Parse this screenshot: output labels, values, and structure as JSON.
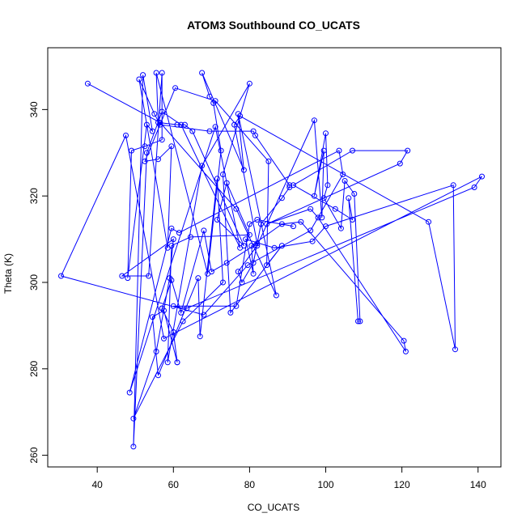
{
  "chart_data": {
    "type": "line",
    "title": "ATOM3 Southbound CO_UCATS",
    "xlabel": "CO_UCATS",
    "ylabel": "Theta (K)",
    "xlim": [
      27,
      146
    ],
    "ylim": [
      257.3,
      354.3
    ],
    "x_ticks": [
      40,
      60,
      80,
      100,
      120,
      140
    ],
    "y_ticks": [
      260,
      280,
      300,
      320,
      340
    ],
    "grid": false,
    "legend": "none",
    "marker": "open-circle",
    "color": "#0000ff",
    "points": [
      [
        37.5,
        346.0
      ],
      [
        56.5,
        337.0
      ],
      [
        76.5,
        317.0
      ],
      [
        87.0,
        297.0
      ],
      [
        77.0,
        339.0
      ],
      [
        78.5,
        326.0
      ],
      [
        67.5,
        348.5
      ],
      [
        69.5,
        343.0
      ],
      [
        70.5,
        341.5
      ],
      [
        72.5,
        330.5
      ],
      [
        69.0,
        302.0
      ],
      [
        55.5,
        348.5
      ],
      [
        56.0,
        337.0
      ],
      [
        61.0,
        336.5
      ],
      [
        63.0,
        336.5
      ],
      [
        65.0,
        335.0
      ],
      [
        78.5,
        308.5
      ],
      [
        71.5,
        314.5
      ],
      [
        74.0,
        323.0
      ],
      [
        80.0,
        311.0
      ],
      [
        64.5,
        310.5
      ],
      [
        59.5,
        308.5
      ],
      [
        58.5,
        281.5
      ],
      [
        67.5,
        327.0
      ],
      [
        80.0,
        346.0
      ],
      [
        73.0,
        325.0
      ],
      [
        75.0,
        293.0
      ],
      [
        88.5,
        308.5
      ],
      [
        84.5,
        304.0
      ],
      [
        85.0,
        328.0
      ],
      [
        71.0,
        342.0
      ],
      [
        60.5,
        345.0
      ],
      [
        52.5,
        328.0
      ],
      [
        56.0,
        328.5
      ],
      [
        59.5,
        331.5
      ],
      [
        58.5,
        308.0
      ],
      [
        51.0,
        347.0
      ],
      [
        55.0,
        339.0
      ],
      [
        56.5,
        336.5
      ],
      [
        69.5,
        335.0
      ],
      [
        81.0,
        335.0
      ],
      [
        81.5,
        334.0
      ],
      [
        90.5,
        322.5
      ],
      [
        90.5,
        322.0
      ],
      [
        88.5,
        319.5
      ],
      [
        83.0,
        313.5
      ],
      [
        81.0,
        304.5
      ],
      [
        78.0,
        300.0
      ],
      [
        77.0,
        302.5
      ],
      [
        82.0,
        308.5
      ],
      [
        97.0,
        337.5
      ],
      [
        99.0,
        315.0
      ],
      [
        99.5,
        330.5
      ],
      [
        97.0,
        320.0
      ],
      [
        100.0,
        334.5
      ],
      [
        100.5,
        322.5
      ],
      [
        99.5,
        319.5
      ],
      [
        104.0,
        312.5
      ],
      [
        105.0,
        323.5
      ],
      [
        107.5,
        320.5
      ],
      [
        109.0,
        291.0
      ],
      [
        108.5,
        291.0
      ],
      [
        106.0,
        319.5
      ],
      [
        107.0,
        314.5
      ],
      [
        102.5,
        317.0
      ],
      [
        91.5,
        322.5
      ],
      [
        107.0,
        330.5
      ],
      [
        121.5,
        330.5
      ],
      [
        119.5,
        327.5
      ],
      [
        84.5,
        313.5
      ],
      [
        96.0,
        317.0
      ],
      [
        98.0,
        315.0
      ],
      [
        121.0,
        284.0
      ],
      [
        120.5,
        286.5
      ],
      [
        93.5,
        314.0
      ],
      [
        88.5,
        313.5
      ],
      [
        80.5,
        308.5
      ],
      [
        81.0,
        302.0
      ],
      [
        79.0,
        310.0
      ],
      [
        86.5,
        308.0
      ],
      [
        96.5,
        309.5
      ],
      [
        100.0,
        313.0
      ],
      [
        133.5,
        322.5
      ],
      [
        134.0,
        284.5
      ],
      [
        127.0,
        314.0
      ],
      [
        77.5,
        338.5
      ],
      [
        76.0,
        336.5
      ],
      [
        82.0,
        309.0
      ],
      [
        74.0,
        304.5
      ],
      [
        70.0,
        302.5
      ],
      [
        68.0,
        312.0
      ],
      [
        62.0,
        293.0
      ],
      [
        59.5,
        300.5
      ],
      [
        57.0,
        294.0
      ],
      [
        57.0,
        294.0
      ],
      [
        60.0,
        288.5
      ],
      [
        61.0,
        281.5
      ],
      [
        61.0,
        281.5
      ],
      [
        57.5,
        293.5
      ],
      [
        54.5,
        292.0
      ],
      [
        56.0,
        278.5
      ],
      [
        66.5,
        301.0
      ],
      [
        67.0,
        287.5
      ],
      [
        71.5,
        324.0
      ],
      [
        73.0,
        300.0
      ],
      [
        62.5,
        291.0
      ],
      [
        49.5,
        268.5
      ],
      [
        55.5,
        284.0
      ],
      [
        59.0,
        301.0
      ],
      [
        60.0,
        310.0
      ],
      [
        46.5,
        301.5
      ],
      [
        53.5,
        301.5
      ],
      [
        57.0,
        348.5
      ],
      [
        57.0,
        333.0
      ],
      [
        52.5,
        331.5
      ],
      [
        49.0,
        330.5
      ],
      [
        48.0,
        301.0
      ],
      [
        53.0,
        336.5
      ],
      [
        54.5,
        335.0
      ],
      [
        52.0,
        348.0
      ],
      [
        49.5,
        262.0
      ],
      [
        53.0,
        330.0
      ],
      [
        57.0,
        339.5
      ],
      [
        62.0,
        336.5
      ],
      [
        77.5,
        308.0
      ],
      [
        71.0,
        336.0
      ],
      [
        48.5,
        274.5
      ],
      [
        59.5,
        312.5
      ],
      [
        61.5,
        311.5
      ],
      [
        103.5,
        330.5
      ],
      [
        104.5,
        325.0
      ],
      [
        96.0,
        312.0
      ],
      [
        79.5,
        304.0
      ],
      [
        68.0,
        292.5
      ],
      [
        30.5,
        301.5
      ],
      [
        47.5,
        334.0
      ],
      [
        57.5,
        287.0
      ],
      [
        141.0,
        324.5
      ],
      [
        139.0,
        322.0
      ],
      [
        63.5,
        294.0
      ],
      [
        60.0,
        294.5
      ],
      [
        76.5,
        294.5
      ],
      [
        80.0,
        313.5
      ],
      [
        82.0,
        314.5
      ],
      [
        91.5,
        313.0
      ]
    ]
  }
}
